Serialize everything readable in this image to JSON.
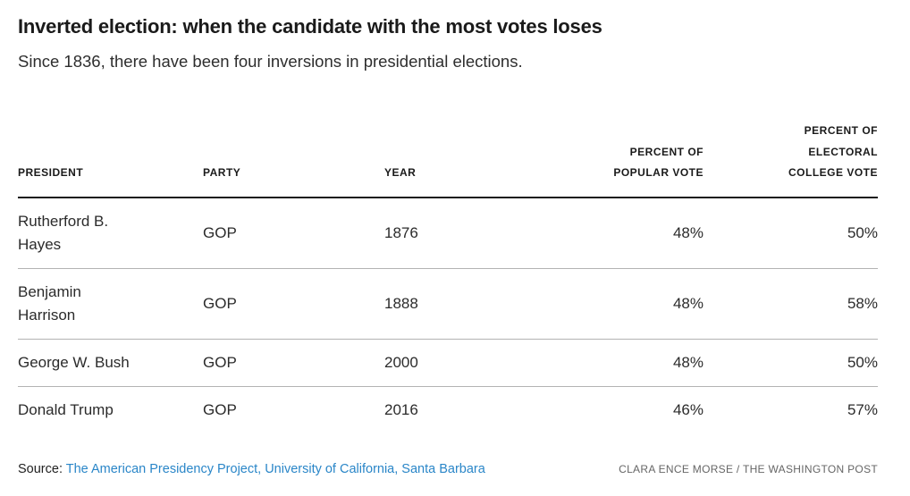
{
  "header": {
    "title": "Inverted election: when the candidate with the most votes loses",
    "subtitle": "Since 1836, there have been four inversions in presidential elections."
  },
  "table": {
    "columns": [
      {
        "key": "president",
        "label": "PRESIDENT",
        "align": "left"
      },
      {
        "key": "party",
        "label": "PARTY",
        "align": "left"
      },
      {
        "key": "year",
        "label": "YEAR",
        "align": "left"
      },
      {
        "key": "popular",
        "label": "PERCENT OF\nPOPULAR VOTE",
        "align": "right"
      },
      {
        "key": "electoral",
        "label": "PERCENT OF\nELECTORAL\nCOLLEGE VOTE",
        "align": "right"
      }
    ],
    "rows": [
      {
        "president": "Rutherford B.\nHayes",
        "party": "GOP",
        "year": "1876",
        "popular": "48%",
        "electoral": "50%"
      },
      {
        "president": "Benjamin\nHarrison",
        "party": "GOP",
        "year": "1888",
        "popular": "48%",
        "electoral": "58%"
      },
      {
        "president": "George W. Bush",
        "party": "GOP",
        "year": "2000",
        "popular": "48%",
        "electoral": "50%"
      },
      {
        "president": "Donald Trump",
        "party": "GOP",
        "year": "2016",
        "popular": "46%",
        "electoral": "57%"
      }
    ]
  },
  "footer": {
    "source_label": "Source:",
    "source_link": "The American Presidency Project, University of California, Santa Barbara",
    "credit": "CLARA ENCE MORSE / THE WASHINGTON POST"
  },
  "colors": {
    "link_blue": "#2a86c8",
    "header_rule": "#1a1a1a",
    "row_divider": "#b3b3b3",
    "text_dark": "#1a1a1a",
    "text_body": "#2b2b2b",
    "credit_gray": "#666666"
  },
  "chart_data": {
    "type": "table",
    "title": "Inverted election: when the candidate with the most votes loses",
    "subtitle": "Since 1836, there have been four inversions in presidential elections.",
    "columns": [
      "PRESIDENT",
      "PARTY",
      "YEAR",
      "PERCENT OF POPULAR VOTE",
      "PERCENT OF ELECTORAL COLLEGE VOTE"
    ],
    "rows": [
      [
        "Rutherford B. Hayes",
        "GOP",
        1876,
        "48%",
        "50%"
      ],
      [
        "Benjamin Harrison",
        "GOP",
        1888,
        "48%",
        "58%"
      ],
      [
        "George W. Bush",
        "GOP",
        2000,
        "48%",
        "50%"
      ],
      [
        "Donald Trump",
        "GOP",
        2016,
        "46%",
        "57%"
      ]
    ],
    "notes": {
      "source": "The American Presidency Project, University of California, Santa Barbara",
      "credit": "CLARA ENCE MORSE / THE WASHINGTON POST"
    }
  }
}
